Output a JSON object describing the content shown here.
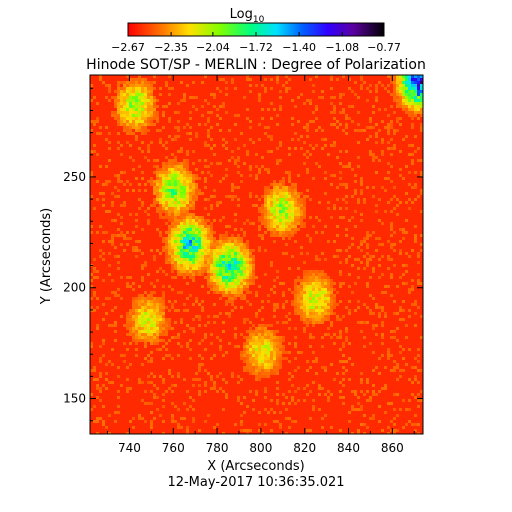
{
  "chart_data": {
    "type": "heatmap",
    "title": "Hinode SOT/SP - MERLIN : Degree of Polarization",
    "xlabel": "X (Arcseconds)",
    "ylabel": "Y (Arcseconds)",
    "timestamp": "12-May-2017 10:36:35.021",
    "xlim": [
      722,
      874
    ],
    "ylim": [
      134,
      296
    ],
    "xticks": [
      740,
      760,
      780,
      800,
      820,
      840,
      860
    ],
    "yticks": [
      150,
      200,
      250
    ],
    "colorbar": {
      "label": "Log",
      "label_sub": "10",
      "range": [
        -2.67,
        -0.77
      ],
      "tick_values": [
        -2.67,
        -2.35,
        -2.04,
        -1.72,
        -1.4,
        -1.08,
        -0.77
      ],
      "tick_labels": [
        "−2.67",
        "−2.35",
        "−2.04",
        "−1.72",
        "−1.40",
        "−1.08",
        "−0.77"
      ],
      "colormap": "rainbow (red → yellow → green → cyan → blue → violet → black)"
    },
    "field_description_values": {
      "background_level": -2.6,
      "enhanced_network_level": -2.0,
      "peak_level": -1.4
    },
    "features": [
      {
        "x": 785,
        "y": 210,
        "peak": -1.5
      },
      {
        "x": 767,
        "y": 220,
        "peak": -1.45
      },
      {
        "x": 760,
        "y": 245,
        "peak": -1.8
      },
      {
        "x": 742,
        "y": 283,
        "peak": -1.9
      },
      {
        "x": 809,
        "y": 236,
        "peak": -1.9
      },
      {
        "x": 824,
        "y": 196,
        "peak": -2.0
      },
      {
        "x": 748,
        "y": 186,
        "peak": -2.05
      },
      {
        "x": 800,
        "y": 172,
        "peak": -2.05
      },
      {
        "x": 872,
        "y": 294,
        "peak": -0.9
      }
    ]
  }
}
